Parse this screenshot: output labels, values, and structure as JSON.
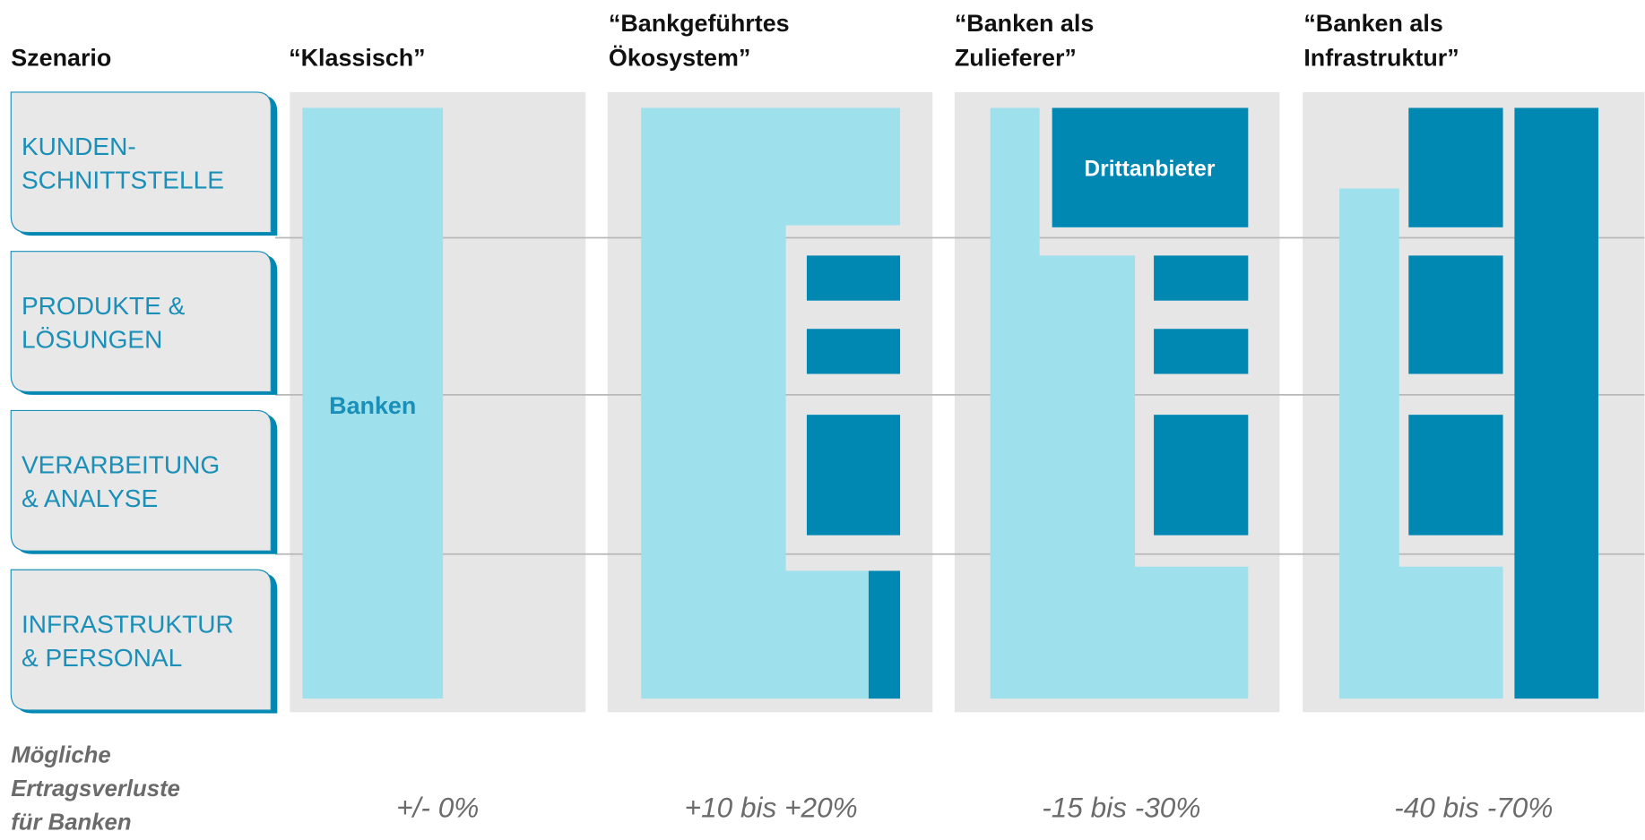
{
  "row_header": "Szenario",
  "rows": [
    [
      "KUNDEN-",
      "SCHNITTSTELLE"
    ],
    [
      "PRODUKTE &",
      "LÖSUNGEN"
    ],
    [
      "VERARBEITUNG",
      "& ANALYSE"
    ],
    [
      "INFRASTRUKTUR",
      "& PERSONAL"
    ]
  ],
  "scenarios": [
    [
      "“Klassisch”"
    ],
    [
      "“Bankgeführtes",
      "Ökosystem”"
    ],
    [
      "“Banken als",
      "Zulieferer”"
    ],
    [
      "“Banken als",
      "Infrastruktur”"
    ]
  ],
  "labels": {
    "banks": "Banken",
    "third_party": "Drittanbieter"
  },
  "footer": {
    "label": [
      "Mögliche",
      "Ertragsverluste",
      "für Banken"
    ],
    "values": [
      "+/- 0%",
      "+10 bis +20%",
      "-15 bis -30%",
      "-40 bis -70%"
    ]
  }
}
